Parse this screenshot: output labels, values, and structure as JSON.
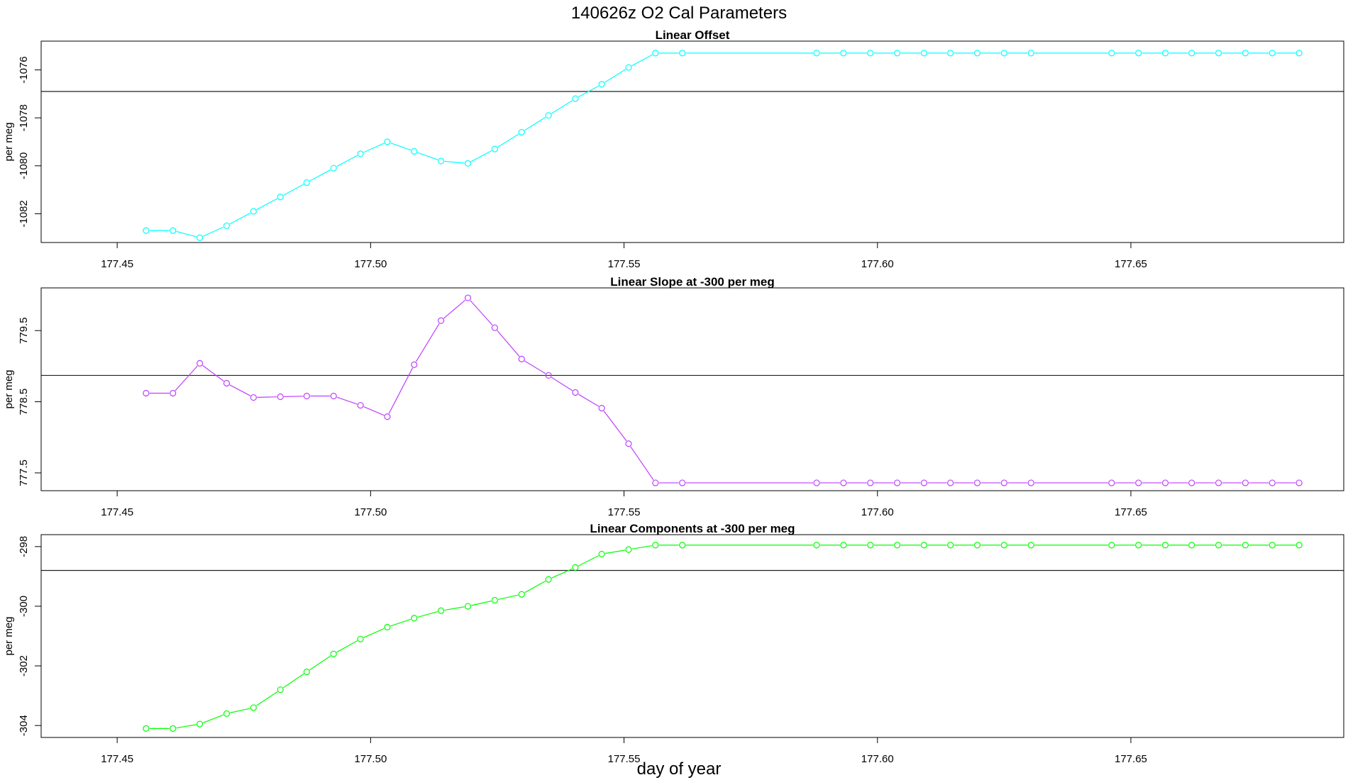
{
  "figure": {
    "title": "140626z    O2 Cal Parameters",
    "xlabel": "day of year"
  },
  "chart_data": [
    {
      "type": "line",
      "title": "Linear Offset",
      "ylabel": "per meg",
      "color": "#00ffff",
      "xlim": [
        177.435,
        177.692
      ],
      "ylim": [
        -1083.2,
        -1074.8
      ],
      "xticks": [
        177.45,
        177.5,
        177.55,
        177.6,
        177.65
      ],
      "xtick_labels": [
        "177.45",
        "177.50",
        "177.55",
        "177.60",
        "177.65"
      ],
      "yticks": [
        -1076,
        -1078,
        -1080,
        -1082
      ],
      "ytick_labels": [
        "-1076",
        "-1078",
        "-1080",
        "-1082"
      ],
      "hline": -1076.9,
      "x": [
        177.4557,
        177.461,
        177.4663,
        177.4716,
        177.4769,
        177.4822,
        177.4874,
        177.4927,
        177.498,
        177.5033,
        177.5086,
        177.5139,
        177.5192,
        177.5245,
        177.5298,
        177.5351,
        177.5404,
        177.5456,
        177.5509,
        177.5562,
        177.5615,
        177.588,
        177.5933,
        177.5986,
        177.6039,
        177.6092,
        177.6144,
        177.6197,
        177.625,
        177.6303,
        177.6462,
        177.6515,
        177.6568,
        177.662,
        177.6673,
        177.6726,
        177.6779,
        177.6832
      ],
      "y": [
        -1082.7,
        -1082.7,
        -1083.0,
        -1082.5,
        -1081.9,
        -1081.3,
        -1080.7,
        -1080.1,
        -1079.5,
        -1079.0,
        -1079.4,
        -1079.8,
        -1079.9,
        -1079.3,
        -1078.6,
        -1077.9,
        -1077.2,
        -1076.6,
        -1075.9,
        -1075.3,
        -1075.3,
        -1075.3,
        -1075.3,
        -1075.3,
        -1075.3,
        -1075.3,
        -1075.3,
        -1075.3,
        -1075.3,
        -1075.3,
        -1075.3,
        -1075.3,
        -1075.3,
        -1075.3,
        -1075.3,
        -1075.3,
        -1075.3,
        -1075.3
      ]
    },
    {
      "type": "line",
      "title": "Linear Slope at -300 per meg",
      "ylabel": "per meg",
      "color": "#bf3fff",
      "xlim": [
        177.435,
        177.692
      ],
      "ylim": [
        777.25,
        780.1
      ],
      "xticks": [
        177.45,
        177.5,
        177.55,
        177.6,
        177.65
      ],
      "xtick_labels": [
        "177.45",
        "177.50",
        "177.55",
        "177.60",
        "177.65"
      ],
      "yticks": [
        779.5,
        778.5,
        777.5
      ],
      "ytick_labels": [
        "779.5",
        "778.5",
        "777.5"
      ],
      "hline": 778.87,
      "x": [
        177.4557,
        177.461,
        177.4663,
        177.4716,
        177.4769,
        177.4822,
        177.4874,
        177.4927,
        177.498,
        177.5033,
        177.5086,
        177.5139,
        177.5192,
        177.5245,
        177.5298,
        177.5351,
        177.5404,
        177.5456,
        177.5509,
        177.5562,
        177.5615,
        177.588,
        177.5933,
        177.5986,
        177.6039,
        177.6092,
        177.6144,
        177.6197,
        177.625,
        177.6303,
        177.6462,
        177.6515,
        177.6568,
        177.662,
        177.6673,
        177.6726,
        177.6779,
        177.6832
      ],
      "y": [
        778.62,
        778.62,
        779.04,
        778.76,
        778.56,
        778.57,
        778.58,
        778.58,
        778.45,
        778.29,
        779.02,
        779.64,
        779.96,
        779.54,
        779.1,
        778.87,
        778.63,
        778.41,
        777.91,
        777.36,
        777.36,
        777.36,
        777.36,
        777.36,
        777.36,
        777.36,
        777.36,
        777.36,
        777.36,
        777.36,
        777.36,
        777.36,
        777.36,
        777.36,
        777.36,
        777.36,
        777.36,
        777.36
      ]
    },
    {
      "type": "line",
      "title": "Linear Components at -300 per meg",
      "ylabel": "per meg",
      "color": "#00ff00",
      "xlim": [
        177.435,
        177.692
      ],
      "ylim": [
        -304.4,
        -297.6
      ],
      "xticks": [
        177.45,
        177.5,
        177.55,
        177.6,
        177.65
      ],
      "xtick_labels": [
        "177.45",
        "177.50",
        "177.55",
        "177.60",
        "177.65"
      ],
      "yticks": [
        -298,
        -300,
        -302,
        -304
      ],
      "ytick_labels": [
        "-298",
        "-300",
        "-302",
        "-304"
      ],
      "hline": -298.8,
      "x": [
        177.4557,
        177.461,
        177.4663,
        177.4716,
        177.4769,
        177.4822,
        177.4874,
        177.4927,
        177.498,
        177.5033,
        177.5086,
        177.5139,
        177.5192,
        177.5245,
        177.5298,
        177.5351,
        177.5404,
        177.5456,
        177.5509,
        177.5562,
        177.5615,
        177.588,
        177.5933,
        177.5986,
        177.6039,
        177.6092,
        177.6144,
        177.6197,
        177.625,
        177.6303,
        177.6462,
        177.6515,
        177.6568,
        177.662,
        177.6673,
        177.6726,
        177.6779,
        177.6832
      ],
      "y": [
        -304.1,
        -304.1,
        -303.95,
        -303.6,
        -303.4,
        -302.8,
        -302.2,
        -301.6,
        -301.1,
        -300.7,
        -300.4,
        -300.15,
        -300.0,
        -299.8,
        -299.6,
        -299.1,
        -298.7,
        -298.25,
        -298.1,
        -297.95,
        -297.95,
        -297.95,
        -297.95,
        -297.95,
        -297.95,
        -297.95,
        -297.95,
        -297.95,
        -297.95,
        -297.95,
        -297.95,
        -297.95,
        -297.95,
        -297.95,
        -297.95,
        -297.95,
        -297.95,
        -297.95
      ]
    }
  ]
}
